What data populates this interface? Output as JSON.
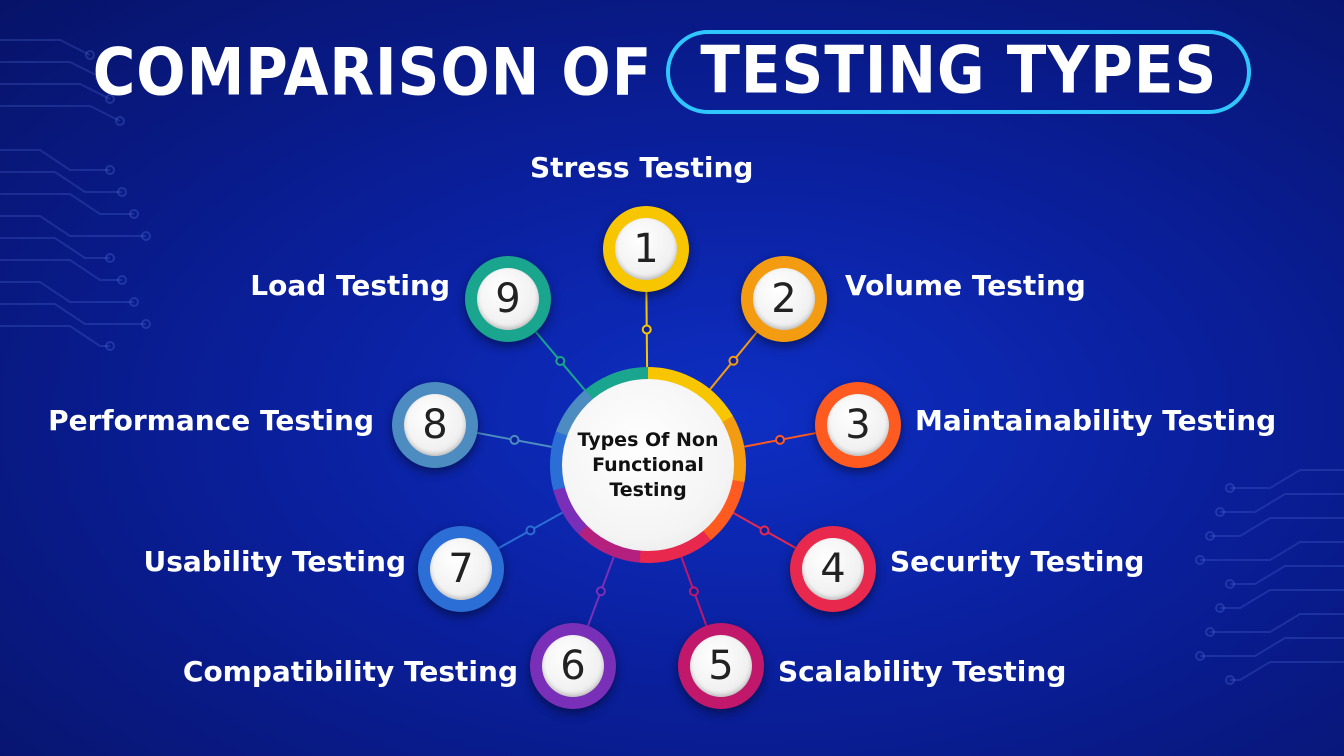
{
  "title": {
    "left": "COMPARISON OF",
    "right": "TESTING TYPES"
  },
  "center": {
    "lines": [
      "Types Of Non",
      "Functional",
      "Testing"
    ]
  },
  "nodes": [
    {
      "number": "1",
      "label": "Stress Testing",
      "color": "#f7c600"
    },
    {
      "number": "2",
      "label": "Volume Testing",
      "color": "#f39c12"
    },
    {
      "number": "3",
      "label": "Maintainability Testing",
      "color": "#ff5a1f"
    },
    {
      "number": "4",
      "label": "Security Testing",
      "color": "#e8294d"
    },
    {
      "number": "5",
      "label": "Scalability Testing",
      "color": "#c2186b"
    },
    {
      "number": "6",
      "label": "Compatibility Testing",
      "color": "#7a2fb8"
    },
    {
      "number": "7",
      "label": "Usability Testing",
      "color": "#2b6fd6"
    },
    {
      "number": "8",
      "label": "Performance Testing",
      "color": "#4d8cc0"
    },
    {
      "number": "9",
      "label": "Load Testing",
      "color": "#1aa58e"
    }
  ],
  "colors": {
    "background": "#0a1f9c",
    "accent": "#2ec8ff"
  }
}
